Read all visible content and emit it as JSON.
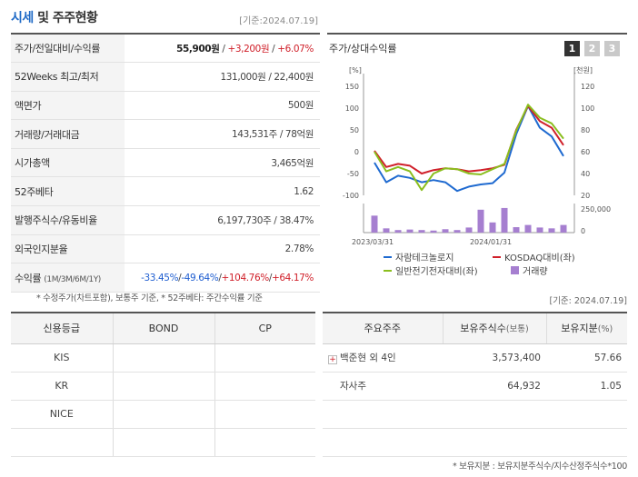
{
  "header": {
    "title_part1": "시세",
    "title_part2": "및 주주현황",
    "date": "[기준:2024.07.19]"
  },
  "main_table": {
    "rows": [
      {
        "label": "주가/전일대비/수익률",
        "price": "55,900원",
        "sep1": " / ",
        "change": "+3,200원",
        "sep2": " / ",
        "rate": "+6.07%"
      },
      {
        "label": "52Weeks 최고/최저",
        "value": "131,000원 / 22,400원"
      },
      {
        "label": "액면가",
        "value": "500원"
      },
      {
        "label": "거래량/거래대금",
        "value": "143,531주 / 78억원"
      },
      {
        "label": "시가총액",
        "value": "3,465억원"
      },
      {
        "label": "52주베타",
        "value": "1.62"
      },
      {
        "label": "발행주식수/유동비율",
        "value": "6,197,730주 / 38.47%"
      },
      {
        "label": "외국인지분율",
        "value": "2.78%"
      },
      {
        "label": "수익률",
        "label_sub": "(1M/3M/6M/1Y)",
        "r1": "-33.45%",
        "r2": "-49.64%",
        "r3": "+104.76%",
        "r4": "+64.17%",
        "sep": "/"
      }
    ],
    "note": "* 수정주가(차트포함), 보통주 기준, * 52주베타: 주간수익률 기준"
  },
  "chart_panel": {
    "title": "주가/상대수익률",
    "buttons": [
      "1",
      "2",
      "3"
    ],
    "active_button": "1"
  },
  "chart_data": {
    "type": "line",
    "x_labels": [
      "2023/03/31",
      "2024/01/31"
    ],
    "left_axis": {
      "label": "[%]",
      "ticks": [
        150,
        100,
        50,
        0,
        -50,
        -100
      ],
      "range": [
        -100,
        150
      ]
    },
    "right_axis": {
      "label": "[천원]",
      "ticks": [
        120,
        100,
        80,
        60,
        40,
        20
      ],
      "range": [
        20,
        120
      ]
    },
    "volume_axis": {
      "ticks": [
        "250,000",
        "0"
      ]
    },
    "series": [
      {
        "name": "자람테크놀로지",
        "color": "#1f6ad0",
        "axis": "left",
        "values": [
          -25,
          -70,
          -55,
          -60,
          -70,
          -65,
          -70,
          -90,
          -80,
          -75,
          -72,
          -48,
          40,
          105,
          55,
          35,
          -10
        ]
      },
      {
        "name": "KOSDAQ대비(좌)",
        "color": "#d0202a",
        "axis": "left",
        "values": [
          2,
          -35,
          -28,
          -32,
          -50,
          -42,
          -38,
          -40,
          -45,
          -42,
          -38,
          -30,
          50,
          105,
          70,
          55,
          15
        ]
      },
      {
        "name": "일반전기전자대비(좌)",
        "color": "#8abe1e",
        "axis": "left",
        "values": [
          0,
          -45,
          -35,
          -45,
          -88,
          -50,
          -38,
          -40,
          -50,
          -52,
          -40,
          -28,
          48,
          108,
          78,
          65,
          30
        ]
      }
    ],
    "volume": {
      "name": "거래량",
      "color": "#a67fd0",
      "values": [
        100,
        25,
        15,
        18,
        15,
        12,
        20,
        15,
        30,
        135,
        60,
        145,
        32,
        45,
        30,
        25,
        45
      ]
    }
  },
  "date2": "[기준: 2024.07.19]",
  "credit_table": {
    "headers": [
      "신용등급",
      "BOND",
      "CP"
    ],
    "rows": [
      [
        "KIS",
        "",
        ""
      ],
      [
        "KR",
        "",
        ""
      ],
      [
        "NICE",
        "",
        ""
      ],
      [
        "",
        "",
        ""
      ]
    ]
  },
  "holder_table": {
    "headers": [
      "주요주주",
      "보유주식수",
      "(보통)",
      "보유지분",
      "(%)"
    ],
    "rows": [
      {
        "name": "백준현 외 4인",
        "shares": "3,573,400",
        "pct": "57.66",
        "expand": "+"
      },
      {
        "name": "자사주",
        "shares": "64,932",
        "pct": "1.05"
      }
    ],
    "note": "* 보유지분 : 보유지분주식수/지수산정주식수*100"
  }
}
